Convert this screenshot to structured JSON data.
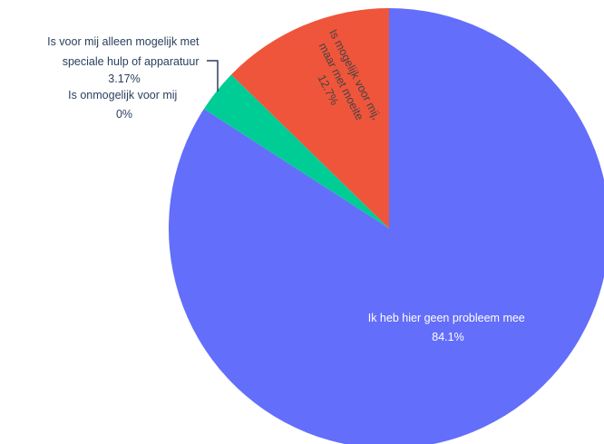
{
  "chart_data": {
    "type": "pie",
    "title": "",
    "slices": [
      {
        "label": "Ik heb hier geen probleem mee",
        "value": 84.1,
        "value_label": "84.1%",
        "color": "#636efa"
      },
      {
        "label": "Is onmogelijk voor mij",
        "value": 0,
        "value_label": "0%",
        "color": "#ab63fa"
      },
      {
        "label": "Is voor mij alleen mogelijk met speciale hulp of apparatuur",
        "value": 3.17,
        "value_label": "3.17%",
        "color": "#00cc96"
      },
      {
        "label": "Is mogelijk voor mij, maar met moeite",
        "value": 12.7,
        "value_label": "12.7%",
        "color": "#ef553b"
      }
    ],
    "legend": "none",
    "direction": "clockwise",
    "start_angle": "top"
  },
  "labels": {
    "big_name": "Ik heb hier geen probleem mee",
    "big_pct": "84.1%",
    "red_line1": "Is mogelijk voor mij,",
    "red_line2": "maar met moeite",
    "red_pct": "12.7%",
    "green_line1": "Is voor mij alleen mogelijk met",
    "green_line2": "speciale hulp of apparatuur",
    "green_pct": "3.17%",
    "zero_name": "Is onmogelijk voor mij",
    "zero_pct": "0%"
  }
}
